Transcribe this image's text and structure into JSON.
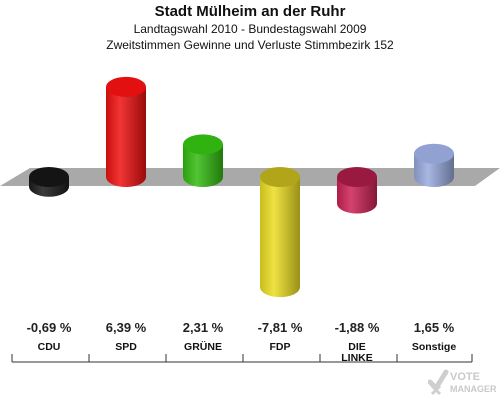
{
  "header": {
    "title": "Stadt Mülheim an der Ruhr",
    "subtitle1": "Landtagswahl 2010 - Bundestagswahl 2009",
    "subtitle2": "Zweitstimmen Gewinne und Verluste Stimmbezirk 152"
  },
  "watermark": {
    "line1": "VOTE",
    "line2": "MANAGER"
  },
  "chart_data": {
    "type": "bar",
    "categories": [
      "CDU",
      "SPD",
      "GRÜNE",
      "FDP",
      "DIE LINKE",
      "Sonstige"
    ],
    "values": [
      -0.69,
      6.39,
      2.31,
      -7.81,
      -1.88,
      1.65
    ],
    "value_labels": [
      "-0,69 %",
      "6,39 %",
      "2,31 %",
      "-7,81 %",
      "-1,88 %",
      "1,65 %"
    ],
    "colors": [
      "#1a1a1a",
      "#ee1111",
      "#33bb11",
      "#ecdd22",
      "#cc2255",
      "#99aadd"
    ],
    "title": "Stadt Mülheim an der Ruhr",
    "xlabel": "",
    "ylabel": "",
    "ylim": [
      -8,
      7
    ],
    "grid": false,
    "legend": "none"
  }
}
